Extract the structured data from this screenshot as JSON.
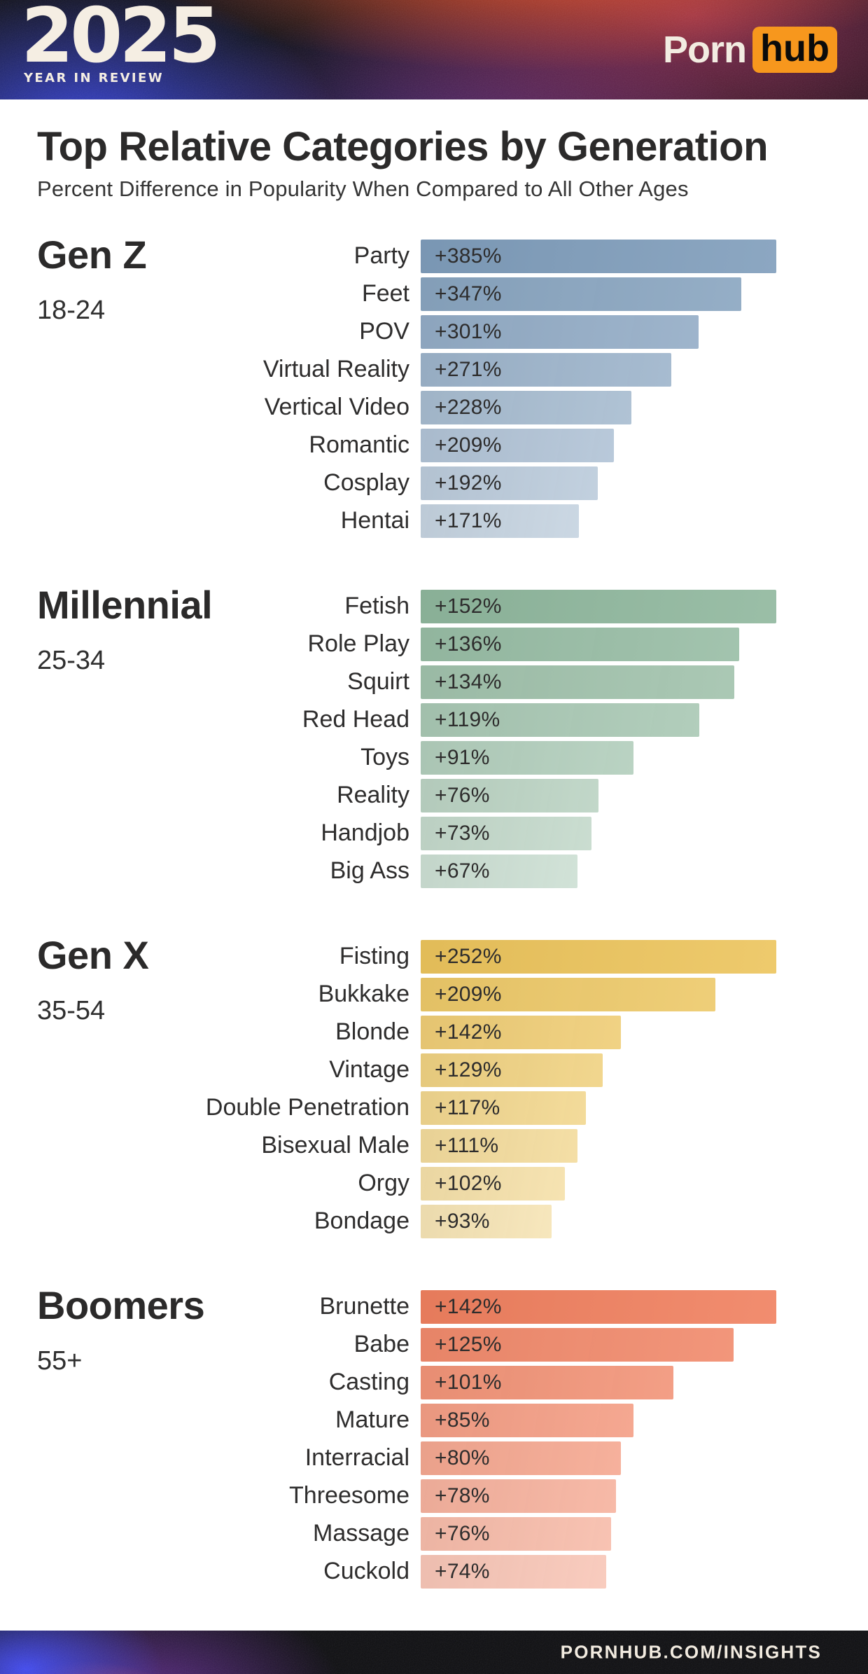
{
  "header": {
    "logo_year": "2025",
    "logo_tagline": "YEAR IN REVIEW",
    "brand_porn": "Porn",
    "brand_hub": "hub",
    "brand_accent": "#f7971d"
  },
  "chart_data": {
    "type": "bar",
    "orientation": "horizontal",
    "title": "Top Relative Categories by Generation",
    "subtitle": "Percent Difference in Popularity When Compared to All Other Ages",
    "value_format": "+{v}%",
    "grid": false,
    "legend": "none",
    "layout_hints": {
      "bars_scaled_per_group": true,
      "top_bar_full_width": true,
      "value_labels_inside_bars": true,
      "bar_fade_first_row_alpha": 1.0,
      "bar_fade_last_row_alpha": 0.45
    },
    "groups": [
      {
        "name": "Gen Z",
        "age_range": "18-24",
        "bar_color": "#7f9dbb",
        "categories": [
          "Party",
          "Feet",
          "POV",
          "Virtual Reality",
          "Vertical Video",
          "Romantic",
          "Cosplay",
          "Hentai"
        ],
        "values": [
          385,
          347,
          301,
          271,
          228,
          209,
          192,
          171
        ]
      },
      {
        "name": "Millennial",
        "age_range": "25-34",
        "bar_color": "#8fb79d",
        "categories": [
          "Fetish",
          "Role Play",
          "Squirt",
          "Red Head",
          "Toys",
          "Reality",
          "Handjob",
          "Big Ass"
        ],
        "values": [
          152,
          136,
          134,
          119,
          91,
          76,
          73,
          67
        ]
      },
      {
        "name": "Gen X",
        "age_range": "35-54",
        "bar_color": "#ecc45c",
        "categories": [
          "Fisting",
          "Bukkake",
          "Blonde",
          "Vintage",
          "Double Penetration",
          "Bisexual Male",
          "Orgy",
          "Bondage"
        ],
        "values": [
          252,
          209,
          142,
          129,
          117,
          111,
          102,
          93
        ]
      },
      {
        "name": "Boomers",
        "age_range": "55+",
        "bar_color": "#f0805f",
        "categories": [
          "Brunette",
          "Babe",
          "Casting",
          "Mature",
          "Interracial",
          "Threesome",
          "Massage",
          "Cuckold"
        ],
        "values": [
          142,
          125,
          101,
          85,
          80,
          78,
          76,
          74
        ]
      }
    ]
  },
  "footer": {
    "url_label": "PORNHUB.COM/INSIGHTS"
  }
}
